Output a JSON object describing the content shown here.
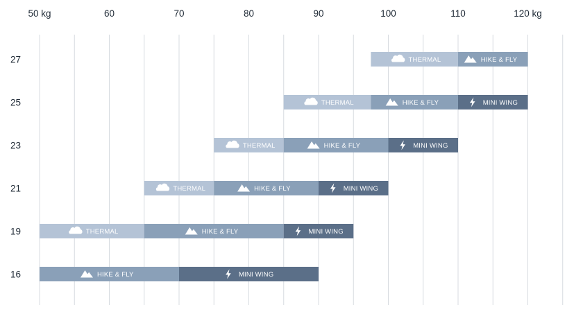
{
  "colors": {
    "thermal": "#b4c3d6",
    "hike_fly": "#8aa0b8",
    "mini_wing": "#5b6f88",
    "grid": "#d7dbe0",
    "text": "#1f2a36"
  },
  "chart_data": {
    "type": "bar",
    "orientation": "horizontal-stacked-range",
    "xlim": [
      50,
      125
    ],
    "grid_step": 5,
    "ticks": [
      {
        "value": 50,
        "label": "50 kg"
      },
      {
        "value": 60,
        "label": "60"
      },
      {
        "value": 70,
        "label": "70"
      },
      {
        "value": 80,
        "label": "80"
      },
      {
        "value": 90,
        "label": "90"
      },
      {
        "value": 100,
        "label": "100"
      },
      {
        "value": 110,
        "label": "110"
      },
      {
        "value": 120,
        "label": "120 kg"
      }
    ],
    "legend": [],
    "rows": [
      {
        "size": "27",
        "segments": [
          {
            "category": "thermal",
            "label": "THERMAL",
            "icon": "cloud-icon",
            "start": 97.5,
            "end": 110
          },
          {
            "category": "hike_fly",
            "label": "HIKE & FLY",
            "icon": "mountain-icon",
            "start": 110,
            "end": 120
          }
        ]
      },
      {
        "size": "25",
        "segments": [
          {
            "category": "thermal",
            "label": "THERMAL",
            "icon": "cloud-icon",
            "start": 85,
            "end": 97.5
          },
          {
            "category": "hike_fly",
            "label": "HIKE & FLY",
            "icon": "mountain-icon",
            "start": 97.5,
            "end": 110
          },
          {
            "category": "mini_wing",
            "label": "MINI WING",
            "icon": "lightning-icon",
            "start": 110,
            "end": 120
          }
        ]
      },
      {
        "size": "23",
        "segments": [
          {
            "category": "thermal",
            "label": "THERMAL",
            "icon": "cloud-icon",
            "start": 75,
            "end": 85
          },
          {
            "category": "hike_fly",
            "label": "HIKE & FLY",
            "icon": "mountain-icon",
            "start": 85,
            "end": 100
          },
          {
            "category": "mini_wing",
            "label": "MINI WING",
            "icon": "lightning-icon",
            "start": 100,
            "end": 110
          }
        ]
      },
      {
        "size": "21",
        "segments": [
          {
            "category": "thermal",
            "label": "THERMAL",
            "icon": "cloud-icon",
            "start": 65,
            "end": 75
          },
          {
            "category": "hike_fly",
            "label": "HIKE & FLY",
            "icon": "mountain-icon",
            "start": 75,
            "end": 90
          },
          {
            "category": "mini_wing",
            "label": "MINI WING",
            "icon": "lightning-icon",
            "start": 90,
            "end": 100
          }
        ]
      },
      {
        "size": "19",
        "segments": [
          {
            "category": "thermal",
            "label": "THERMAL",
            "icon": "cloud-icon",
            "start": 50,
            "end": 65
          },
          {
            "category": "hike_fly",
            "label": "HIKE & FLY",
            "icon": "mountain-icon",
            "start": 65,
            "end": 85
          },
          {
            "category": "mini_wing",
            "label": "MINI WING",
            "icon": "lightning-icon",
            "start": 85,
            "end": 95
          }
        ]
      },
      {
        "size": "16",
        "segments": [
          {
            "category": "hike_fly",
            "label": "HIKE & FLY",
            "icon": "mountain-icon",
            "start": 50,
            "end": 70
          },
          {
            "category": "mini_wing",
            "label": "MINI WING",
            "icon": "lightning-icon",
            "start": 70,
            "end": 90
          }
        ]
      }
    ]
  }
}
